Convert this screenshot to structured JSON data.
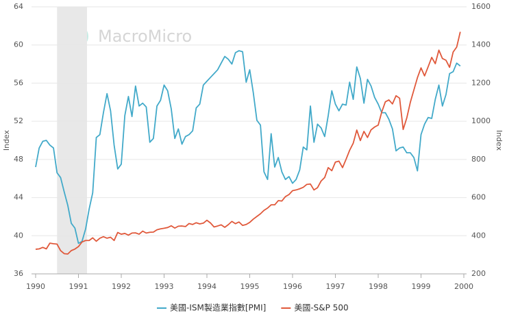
{
  "chart_data": {
    "type": "line",
    "watermark": "MacroMicro",
    "y_label": "Index",
    "y2_label": "Index",
    "x": [
      1990,
      1990.083,
      1990.167,
      1990.25,
      1990.333,
      1990.417,
      1990.5,
      1990.583,
      1990.667,
      1990.75,
      1990.833,
      1990.917,
      1991,
      1991.083,
      1991.167,
      1991.25,
      1991.333,
      1991.417,
      1991.5,
      1991.583,
      1991.667,
      1991.75,
      1991.833,
      1991.917,
      1992,
      1992.083,
      1992.167,
      1992.25,
      1992.333,
      1992.417,
      1992.5,
      1992.583,
      1992.667,
      1992.75,
      1992.833,
      1992.917,
      1993,
      1993.083,
      1993.167,
      1993.25,
      1993.333,
      1993.417,
      1993.5,
      1993.583,
      1993.667,
      1993.75,
      1993.833,
      1993.917,
      1994,
      1994.083,
      1994.167,
      1994.25,
      1994.333,
      1994.417,
      1994.5,
      1994.583,
      1994.667,
      1994.75,
      1994.833,
      1994.917,
      1995,
      1995.083,
      1995.167,
      1995.25,
      1995.333,
      1995.417,
      1995.5,
      1995.583,
      1995.667,
      1995.75,
      1995.833,
      1995.917,
      1996,
      1996.083,
      1996.167,
      1996.25,
      1996.333,
      1996.417,
      1996.5,
      1996.583,
      1996.667,
      1996.75,
      1996.833,
      1996.917,
      1997,
      1997.083,
      1997.167,
      1997.25,
      1997.333,
      1997.417,
      1997.5,
      1997.583,
      1997.667,
      1997.75,
      1997.833,
      1997.917,
      1998,
      1998.083,
      1998.167,
      1998.25,
      1998.333,
      1998.417,
      1998.5,
      1998.583,
      1998.667,
      1998.75,
      1998.833,
      1998.917,
      1999,
      1999.083,
      1999.167,
      1999.25,
      1999.333,
      1999.417,
      1999.5,
      1999.583,
      1999.667,
      1999.75,
      1999.833,
      1999.917
    ],
    "series": [
      {
        "name": "美國-ISM製造業指數[PMI]",
        "color": "#41a9c9",
        "values": [
          47.2,
          49.2,
          49.9,
          50.0,
          49.5,
          49.2,
          46.6,
          46.1,
          44.6,
          43.2,
          41.3,
          40.8,
          39.2,
          39.4,
          40.7,
          42.8,
          44.5,
          50.3,
          50.6,
          52.9,
          54.9,
          53.1,
          49.5,
          47.0,
          47.5,
          52.6,
          54.6,
          52.5,
          55.7,
          53.6,
          53.9,
          53.5,
          49.8,
          50.2,
          53.6,
          54.2,
          55.8,
          55.2,
          53.3,
          50.2,
          51.2,
          49.6,
          50.4,
          50.6,
          51.0,
          53.4,
          53.8,
          55.8,
          56.2,
          56.6,
          57.0,
          57.4,
          58.1,
          58.8,
          58.5,
          58.0,
          59.2,
          59.4,
          59.3,
          56.1,
          57.4,
          55.0,
          52.1,
          51.6,
          46.7,
          45.9,
          50.7,
          47.2,
          48.2,
          46.7,
          45.9,
          46.2,
          45.5,
          45.9,
          46.9,
          49.3,
          49.0,
          53.6,
          49.8,
          51.7,
          51.3,
          50.4,
          52.6,
          55.2,
          53.8,
          53.1,
          53.8,
          53.7,
          56.1,
          54.3,
          57.7,
          56.5,
          53.9,
          56.4,
          55.7,
          54.5,
          53.8,
          52.9,
          52.9,
          52.2,
          51.2,
          48.9,
          49.2,
          49.3,
          48.7,
          48.7,
          48.2,
          46.8,
          50.6,
          51.7,
          52.4,
          52.3,
          54.3,
          55.8,
          53.6,
          54.8,
          57.0,
          57.2,
          58.1,
          57.8
        ]
      },
      {
        "name": "美國-S&P 500",
        "color": "#e0583a",
        "axis": "y2",
        "values": [
          329,
          331,
          339,
          331,
          361,
          358,
          356,
          322,
          306,
          304,
          322,
          330,
          343,
          367,
          375,
          375,
          389,
          371,
          387,
          395,
          387,
          392,
          375,
          417,
          408,
          412,
          403,
          414,
          415,
          408,
          424,
          414,
          418,
          419,
          431,
          436,
          439,
          443,
          452,
          440,
          450,
          451,
          448,
          464,
          459,
          468,
          462,
          466,
          481,
          467,
          446,
          451,
          457,
          444,
          458,
          475,
          463,
          472,
          454,
          459,
          470,
          487,
          501,
          515,
          533,
          545,
          562,
          562,
          584,
          582,
          605,
          616,
          636,
          640,
          646,
          654,
          669,
          671,
          640,
          652,
          687,
          705,
          757,
          741,
          786,
          791,
          757,
          801,
          848,
          885,
          954,
          899,
          947,
          915,
          955,
          970,
          980,
          1049,
          1102,
          1112,
          1091,
          1134,
          1121,
          957,
          1017,
          1099,
          1164,
          1229,
          1280,
          1238,
          1286,
          1335,
          1302,
          1373,
          1329,
          1320,
          1283,
          1363,
          1389,
          1469
        ]
      }
    ],
    "shaded_range": [
      1990.5,
      1991.2
    ],
    "xlim": [
      1990,
      2000
    ],
    "xticks": [
      1990,
      1991,
      1992,
      1993,
      1994,
      1995,
      1996,
      1997,
      1998,
      1999,
      2000
    ],
    "ylim": [
      36,
      64
    ],
    "yticks": [
      36,
      40,
      44,
      48,
      52,
      56,
      60,
      64
    ],
    "y2lim": [
      200,
      1600
    ],
    "y2ticks": [
      200,
      400,
      600,
      800,
      1000,
      1200,
      1400,
      1600
    ],
    "grid": true,
    "legend": "bottom"
  }
}
